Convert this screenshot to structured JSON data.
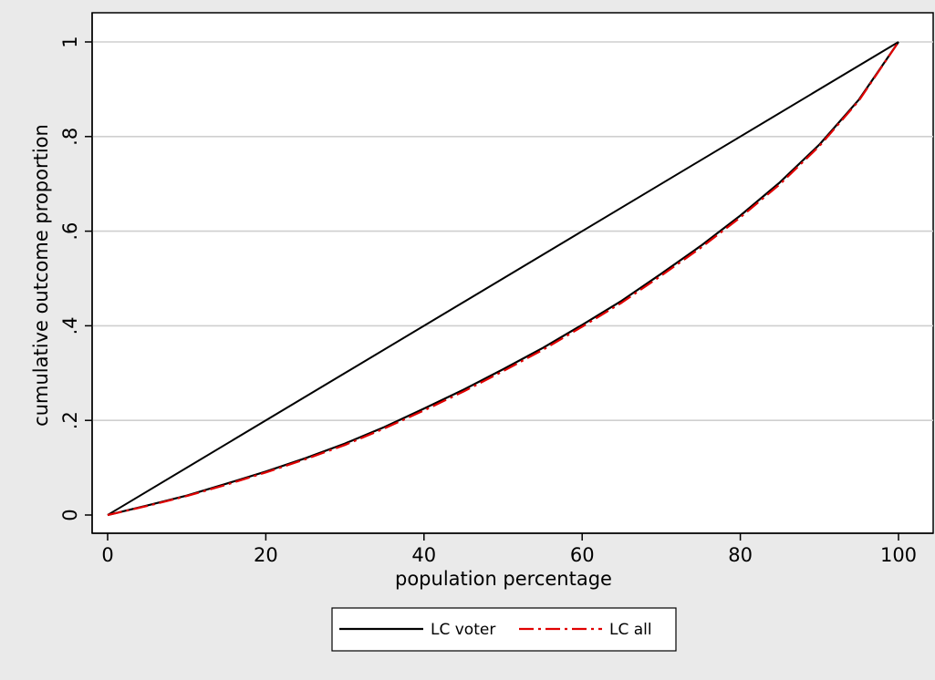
{
  "chart_data": {
    "type": "line",
    "title": "",
    "xlabel": "population percentage",
    "ylabel": "cumulative outcome proportion",
    "xlim": [
      0,
      100
    ],
    "ylim": [
      0,
      1
    ],
    "xticks": [
      0,
      20,
      40,
      60,
      80,
      100
    ],
    "xtick_labels": [
      "0",
      "20",
      "40",
      "60",
      "80",
      "100"
    ],
    "yticks": [
      0,
      0.2,
      0.4,
      0.6,
      0.8,
      1
    ],
    "ytick_labels": [
      "0",
      ".2",
      ".4",
      ".6",
      ".8",
      "1"
    ],
    "grid": "horizontal",
    "legend_position": "bottom",
    "equality_line": {
      "x": [
        0,
        100
      ],
      "y": [
        0,
        1
      ],
      "color": "#000000"
    },
    "series": [
      {
        "name": "LC voter",
        "color": "#000000",
        "style": "solid",
        "x": [
          0,
          5,
          10,
          15,
          20,
          25,
          30,
          35,
          40,
          45,
          50,
          55,
          60,
          65,
          70,
          75,
          80,
          85,
          90,
          95,
          100
        ],
        "y": [
          0,
          0.02,
          0.041,
          0.066,
          0.092,
          0.12,
          0.151,
          0.186,
          0.225,
          0.265,
          0.308,
          0.353,
          0.402,
          0.453,
          0.51,
          0.569,
          0.633,
          0.703,
          0.783,
          0.878,
          1
        ]
      },
      {
        "name": "LC all",
        "color": "#e00000",
        "style": "dashdot",
        "x": [
          0,
          5,
          10,
          15,
          20,
          25,
          30,
          35,
          40,
          45,
          50,
          55,
          60,
          65,
          70,
          75,
          80,
          85,
          90,
          95,
          100
        ],
        "y": [
          0,
          0.019,
          0.04,
          0.064,
          0.09,
          0.118,
          0.148,
          0.183,
          0.221,
          0.261,
          0.304,
          0.349,
          0.398,
          0.449,
          0.506,
          0.565,
          0.629,
          0.699,
          0.78,
          0.876,
          1
        ]
      }
    ]
  }
}
